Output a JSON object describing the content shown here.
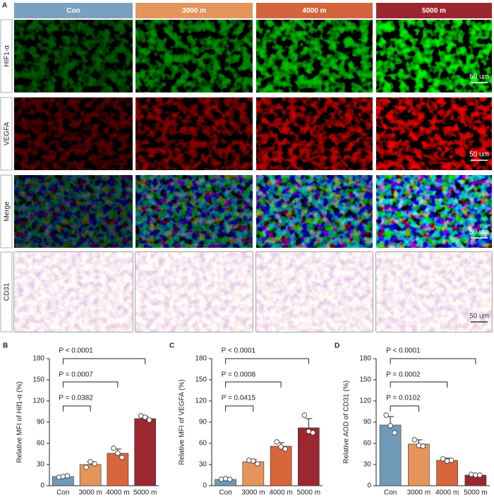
{
  "panel_a": {
    "label": "A",
    "columns": [
      {
        "name": "Con",
        "color": "#7ba0bd"
      },
      {
        "name": "3000 m",
        "color": "#e3955b"
      },
      {
        "name": "4000 m",
        "color": "#d4643c"
      },
      {
        "name": "5000 m",
        "color": "#9a2630"
      }
    ],
    "rows": [
      "HIF1-α",
      "VEGFA",
      "Merge",
      "CD31"
    ],
    "scale_bar": "50 um"
  },
  "chart_data": [
    {
      "type": "bar",
      "panel": "B",
      "ylabel": "Relative MFI of Hif1-α (%)",
      "categories": [
        "Con",
        "3000 m",
        "4000 m",
        "5000 m"
      ],
      "colors": [
        "#6f9ab8",
        "#e4955a",
        "#d9653b",
        "#9b2730"
      ],
      "values": [
        13,
        30,
        46,
        95
      ],
      "errors": [
        1,
        4,
        6,
        3
      ],
      "points": [
        [
          12,
          13,
          14
        ],
        [
          26,
          34,
          31
        ],
        [
          53,
          46,
          40
        ],
        [
          99,
          97,
          93
        ]
      ],
      "ylim": [
        0,
        180
      ],
      "yticks": [
        0,
        30,
        60,
        90,
        120,
        150,
        180
      ],
      "annotations": [
        {
          "text": "P < 0.0001",
          "between": [
            "Con",
            "5000 m"
          ]
        },
        {
          "text": "P = 0.0007",
          "between": [
            "Con",
            "4000 m"
          ]
        },
        {
          "text": "P = 0.0382",
          "between": [
            "Con",
            "3000 m"
          ]
        }
      ]
    },
    {
      "type": "bar",
      "panel": "C",
      "ylabel": "Relative MFI of VEGFA (%)",
      "categories": [
        "Con",
        "3000 m",
        "4000 m",
        "5000 m"
      ],
      "colors": [
        "#6f9ab8",
        "#e4955a",
        "#d9653b",
        "#9b2730"
      ],
      "values": [
        9,
        34,
        56,
        82
      ],
      "errors": [
        1,
        3,
        5,
        13
      ],
      "points": [
        [
          9,
          10,
          9
        ],
        [
          36,
          35,
          31
        ],
        [
          62,
          55,
          52
        ],
        [
          100,
          77,
          75
        ]
      ],
      "ylim": [
        0,
        180
      ],
      "yticks": [
        0,
        30,
        60,
        90,
        120,
        150,
        180
      ],
      "annotations": [
        {
          "text": "P < 0.0001",
          "between": [
            "Con",
            "5000 m"
          ]
        },
        {
          "text": "P = 0.0008",
          "between": [
            "Con",
            "4000 m"
          ]
        },
        {
          "text": "P = 0.0415",
          "between": [
            "Con",
            "3000 m"
          ]
        }
      ]
    },
    {
      "type": "bar",
      "panel": "D",
      "ylabel": "Relative AOD of CD31 (%)",
      "categories": [
        "Con",
        "3000 m",
        "4000 m",
        "5000 m"
      ],
      "colors": [
        "#6f9ab8",
        "#e4955a",
        "#d9653b",
        "#9b2730"
      ],
      "values": [
        86,
        59,
        36,
        15
      ],
      "errors": [
        12,
        6,
        3,
        1
      ],
      "points": [
        [
          100,
          85,
          75
        ],
        [
          65,
          57,
          56
        ],
        [
          38,
          35,
          36
        ],
        [
          16,
          15,
          15
        ]
      ],
      "ylim": [
        0,
        180
      ],
      "yticks": [
        0,
        30,
        60,
        90,
        120,
        150,
        180
      ],
      "annotations": [
        {
          "text": "P < 0.0001",
          "between": [
            "Con",
            "5000 m"
          ]
        },
        {
          "text": "P = 0.0002",
          "between": [
            "Con",
            "4000 m"
          ]
        },
        {
          "text": "P = 0.0102",
          "between": [
            "Con",
            "3000 m"
          ]
        }
      ]
    }
  ]
}
